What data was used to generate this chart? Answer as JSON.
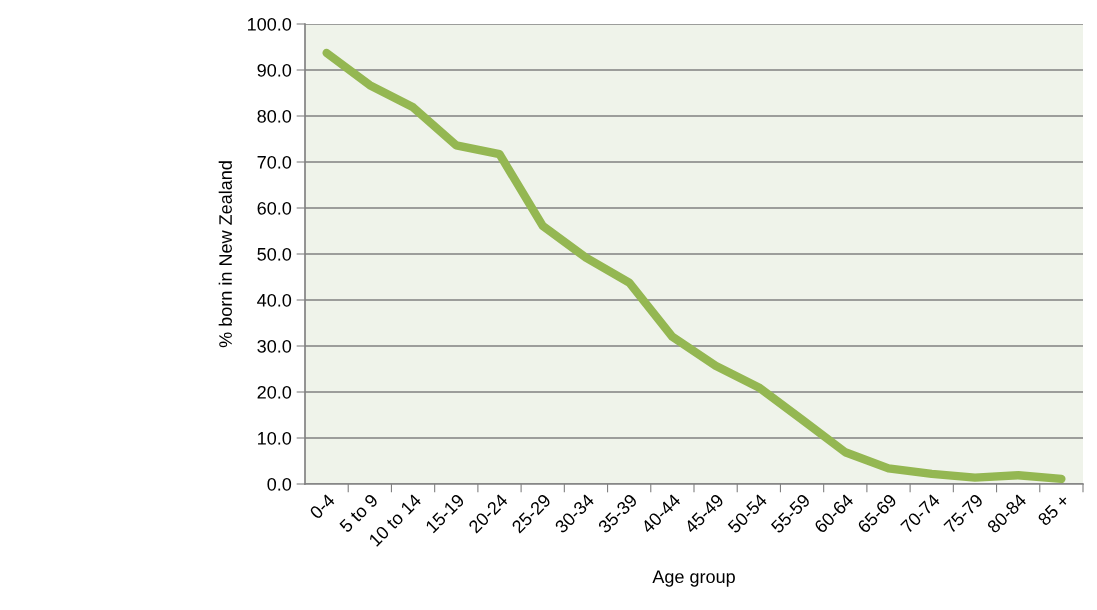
{
  "chart_data": {
    "type": "line",
    "xlabel": "Age group",
    "ylabel": "% born in New Zealand",
    "categories": [
      "0-4",
      "5 to 9",
      "10 to 14",
      "15-19",
      "20-24",
      "25-29",
      "30-34",
      "35-39",
      "40-44",
      "45-49",
      "50-54",
      "55-59",
      "60-64",
      "65-69",
      "70-74",
      "75-79",
      "80-84",
      "85 +"
    ],
    "values": [
      93.7,
      86.7,
      81.9,
      73.6,
      71.7,
      56.1,
      49.2,
      43.8,
      32.0,
      25.7,
      21.0,
      14.0,
      6.9,
      3.4,
      2.2,
      1.4,
      1.9,
      1.1
    ],
    "color": "#94b752",
    "ylim": [
      0,
      100
    ],
    "yticks": [
      {
        "value": 0,
        "label": "0.0"
      },
      {
        "value": 10,
        "label": "10.0"
      },
      {
        "value": 20,
        "label": "20.0"
      },
      {
        "value": 30,
        "label": "30.0"
      },
      {
        "value": 40,
        "label": "40.0"
      },
      {
        "value": 50,
        "label": "50.0"
      },
      {
        "value": 60,
        "label": "60.0"
      },
      {
        "value": 70,
        "label": "70.0"
      },
      {
        "value": 80,
        "label": "80.0"
      },
      {
        "value": 90,
        "label": "90.0"
      },
      {
        "value": 100,
        "label": "100.0"
      }
    ],
    "grid": "y",
    "marker": "none",
    "line_style": "solid"
  }
}
